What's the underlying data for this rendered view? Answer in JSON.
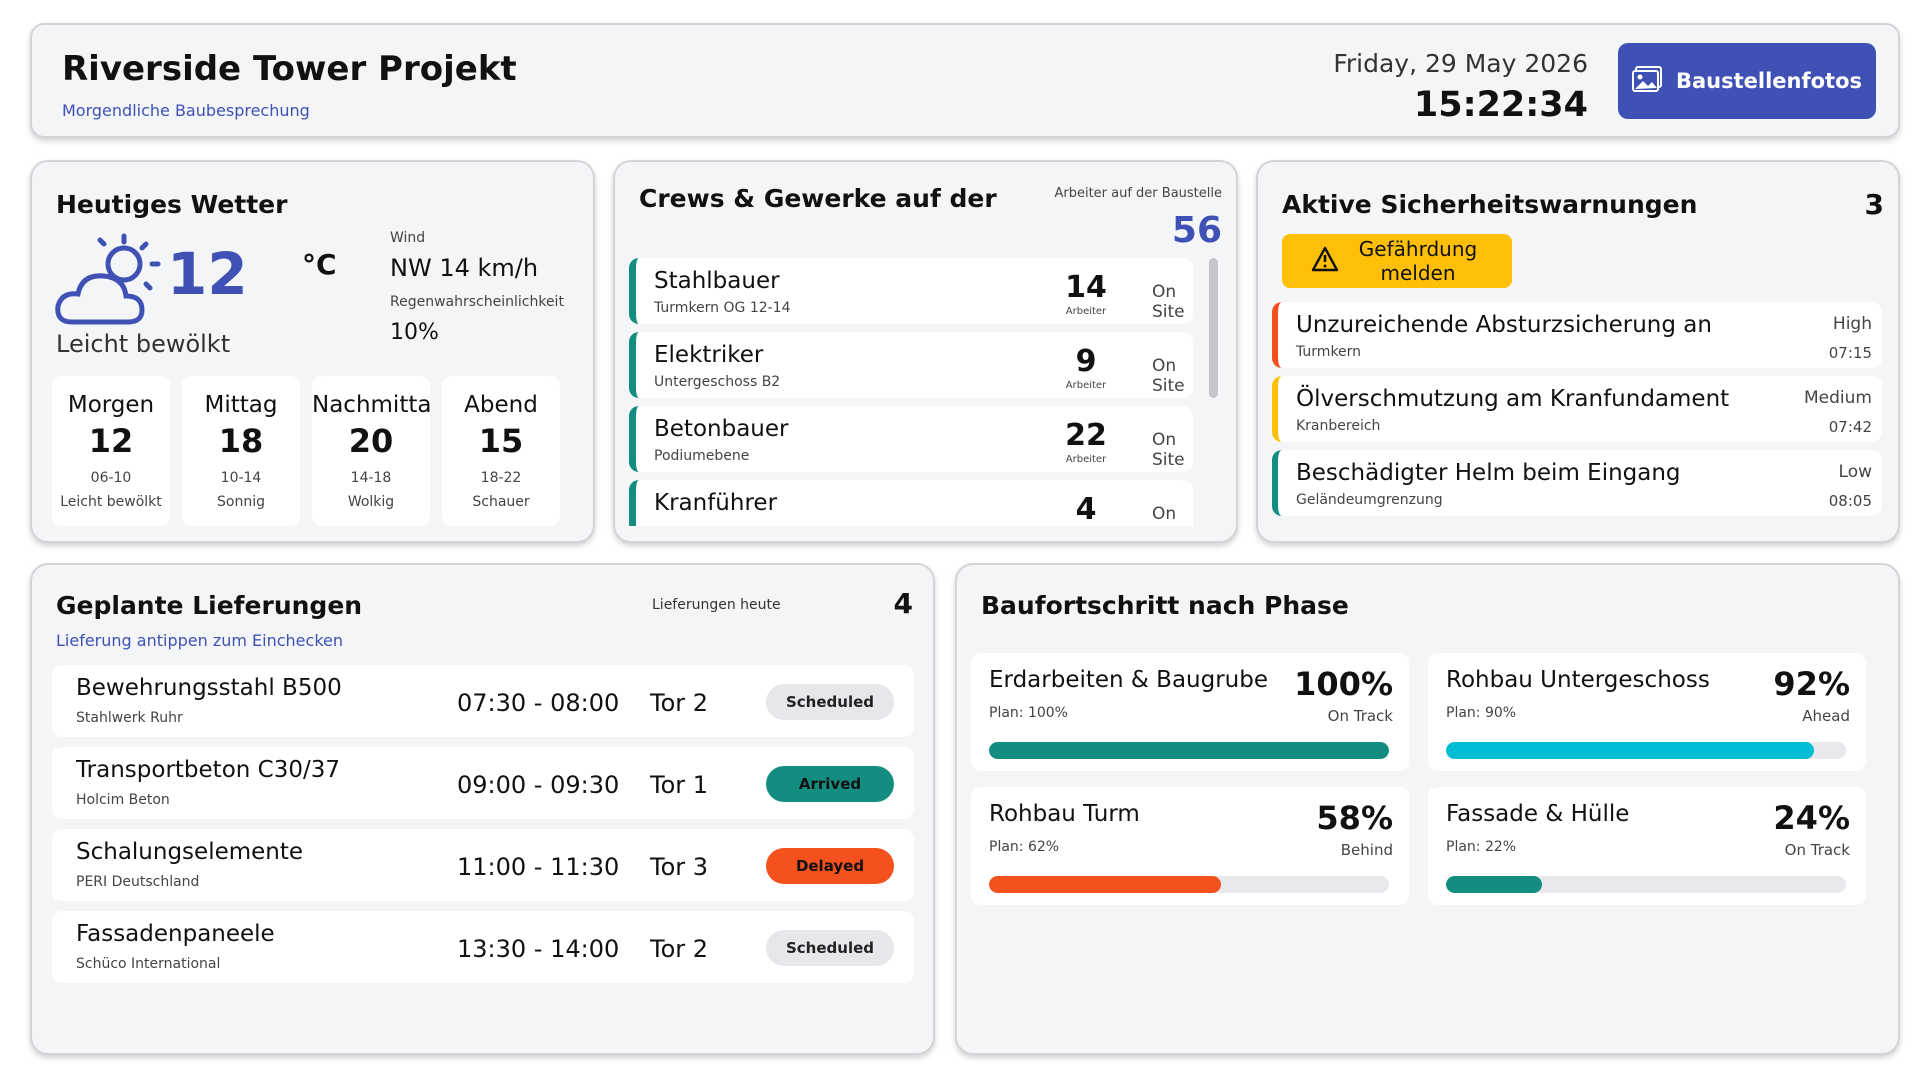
{
  "header": {
    "title": "Riverside Tower Projekt",
    "subtitle": "Morgendliche Baubesprechung",
    "date": "Friday, 29 May 2026",
    "time": "15:22:34",
    "photos_button": "Baustellenfotos",
    "photos_icon": "image-gallery-icon"
  },
  "weather": {
    "title": "Heutiges Wetter",
    "icon": "partly-cloudy-icon",
    "temp": "12",
    "unit": "°C",
    "condition": "Leicht bewölkt",
    "wind_label": "Wind",
    "wind_value": "NW 14 km/h",
    "rain_label": "Regenwahrscheinlichkeit",
    "rain_value": "10%",
    "forecast": [
      {
        "period": "Morgen",
        "temp": "12",
        "range": "06-10",
        "cond": "Leicht bewölkt"
      },
      {
        "period": "Mittag",
        "temp": "18",
        "range": "10-14",
        "cond": "Sonnig"
      },
      {
        "period": "Nachmittag",
        "temp": "20",
        "range": "14-18",
        "cond": "Wolkig"
      },
      {
        "period": "Abend",
        "temp": "15",
        "range": "18-22",
        "cond": "Schauer"
      }
    ]
  },
  "crews": {
    "title": "Crews & Gewerke auf der",
    "workers_label": "Arbeiter auf der Baustelle",
    "workers_total": "56",
    "count_label": "Arbeiter",
    "items": [
      {
        "name": "Stahlbauer",
        "location": "Turmkern OG 12-14",
        "count": "14",
        "status": "On Site"
      },
      {
        "name": "Elektriker",
        "location": "Untergeschoss B2",
        "count": "9",
        "status": "On Site"
      },
      {
        "name": "Betonbauer",
        "location": "Podiumebene",
        "count": "22",
        "status": "On Site"
      },
      {
        "name": "Kranführer",
        "location": "",
        "count": "4",
        "status": "On Site"
      }
    ]
  },
  "safety": {
    "title": "Aktive Sicherheitswarnungen",
    "count": "3",
    "report_button": "Gefährdung melden",
    "report_icon": "warning-triangle-icon",
    "colors": {
      "high": "#f4511e",
      "medium": "#fdbf08",
      "low": "#138d80"
    },
    "items": [
      {
        "title": "Unzureichende Absturzsicherung an",
        "location": "Turmkern",
        "severity": "High",
        "time": "07:15",
        "color": "#f4511e"
      },
      {
        "title": "Ölverschmutzung am Kranfundament",
        "location": "Kranbereich",
        "severity": "Medium",
        "time": "07:42",
        "color": "#fdbf08"
      },
      {
        "title": "Beschädigter Helm beim Eingang",
        "location": "Geländeumgrenzung",
        "severity": "Low",
        "time": "08:05",
        "color": "#138d80"
      }
    ]
  },
  "deliveries": {
    "title": "Geplante Lieferungen",
    "hint": "Lieferung antippen zum Einchecken",
    "today_label": "Lieferungen heute",
    "today_count": "4",
    "items": [
      {
        "name": "Bewehrungsstahl B500",
        "supplier": "Stahlwerk Ruhr",
        "window": "07:30 - 08:00",
        "gate": "Tor 2",
        "status": "Scheduled",
        "bg": "#e5e7eb",
        "fg": "#222222"
      },
      {
        "name": "Transportbeton C30/37",
        "supplier": "Holcim Beton",
        "window": "09:00 - 09:30",
        "gate": "Tor 1",
        "status": "Arrived",
        "bg": "#138d80",
        "fg": "#111111"
      },
      {
        "name": "Schalungselemente",
        "supplier": "PERI Deutschland",
        "window": "11:00 - 11:30",
        "gate": "Tor 3",
        "status": "Delayed",
        "bg": "#f4511e",
        "fg": "#111111"
      },
      {
        "name": "Fassadenpaneele",
        "supplier": "Schüco International",
        "window": "13:30 - 14:00",
        "gate": "Tor 2",
        "status": "Scheduled",
        "bg": "#e5e7eb",
        "fg": "#222222"
      }
    ]
  },
  "progress": {
    "title": "Baufortschritt nach Phase",
    "phases": [
      {
        "name": "Erdarbeiten & Baugrube",
        "plan": "Plan: 100%",
        "percent_label": "100%",
        "percent": 100,
        "status": "On Track",
        "color": "#138d80"
      },
      {
        "name": "Rohbau Untergeschoss",
        "plan": "Plan: 90%",
        "percent_label": "92%",
        "percent": 92,
        "status": "Ahead",
        "color": "#00bcd4"
      },
      {
        "name": "Rohbau Turm",
        "plan": "Plan: 62%",
        "percent_label": "58%",
        "percent": 58,
        "status": "Behind",
        "color": "#f4511e"
      },
      {
        "name": "Fassade & Hülle",
        "plan": "Plan: 22%",
        "percent_label": "24%",
        "percent": 24,
        "status": "On Track",
        "color": "#138d80"
      }
    ]
  }
}
